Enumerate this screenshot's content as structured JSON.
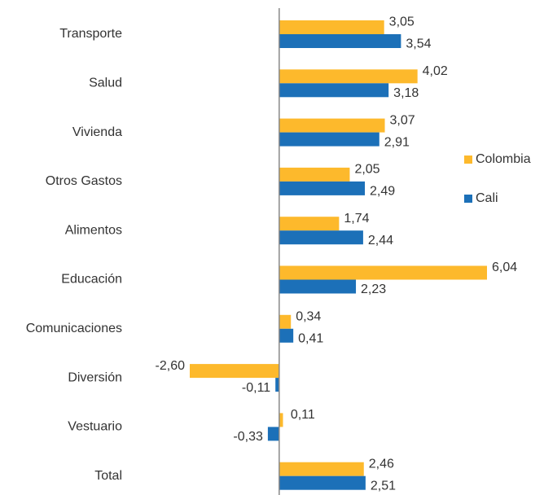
{
  "chart_data": {
    "type": "hbar",
    "categories": [
      "Transporte",
      "Salud",
      "Vivienda",
      "Otros Gastos",
      "Alimentos",
      "Educación",
      "Comunicaciones",
      "Diversión",
      "Vestuario",
      "Total"
    ],
    "series": [
      {
        "name": "Colombia",
        "color": "#fdb92c",
        "values": [
          3.05,
          4.02,
          3.07,
          2.05,
          1.74,
          6.04,
          0.34,
          -2.6,
          0.11,
          2.46
        ],
        "value_labels": [
          "3,05",
          "4,02",
          "3,07",
          "2,05",
          "1,74",
          "6,04",
          "0,34",
          "-2,60",
          "0,11",
          "2,46"
        ]
      },
      {
        "name": "Cali",
        "color": "#1c70b8",
        "values": [
          3.54,
          3.18,
          2.91,
          2.49,
          2.44,
          2.23,
          0.41,
          -0.11,
          -0.33,
          2.51
        ],
        "value_labels": [
          "3,54",
          "3,18",
          "2,91",
          "2,49",
          "2,44",
          "2,23",
          "0,41",
          "-0,11",
          "-0,33",
          "2,51"
        ]
      }
    ],
    "xlim": [
      -2.6,
      6.04
    ],
    "legend": "right"
  }
}
